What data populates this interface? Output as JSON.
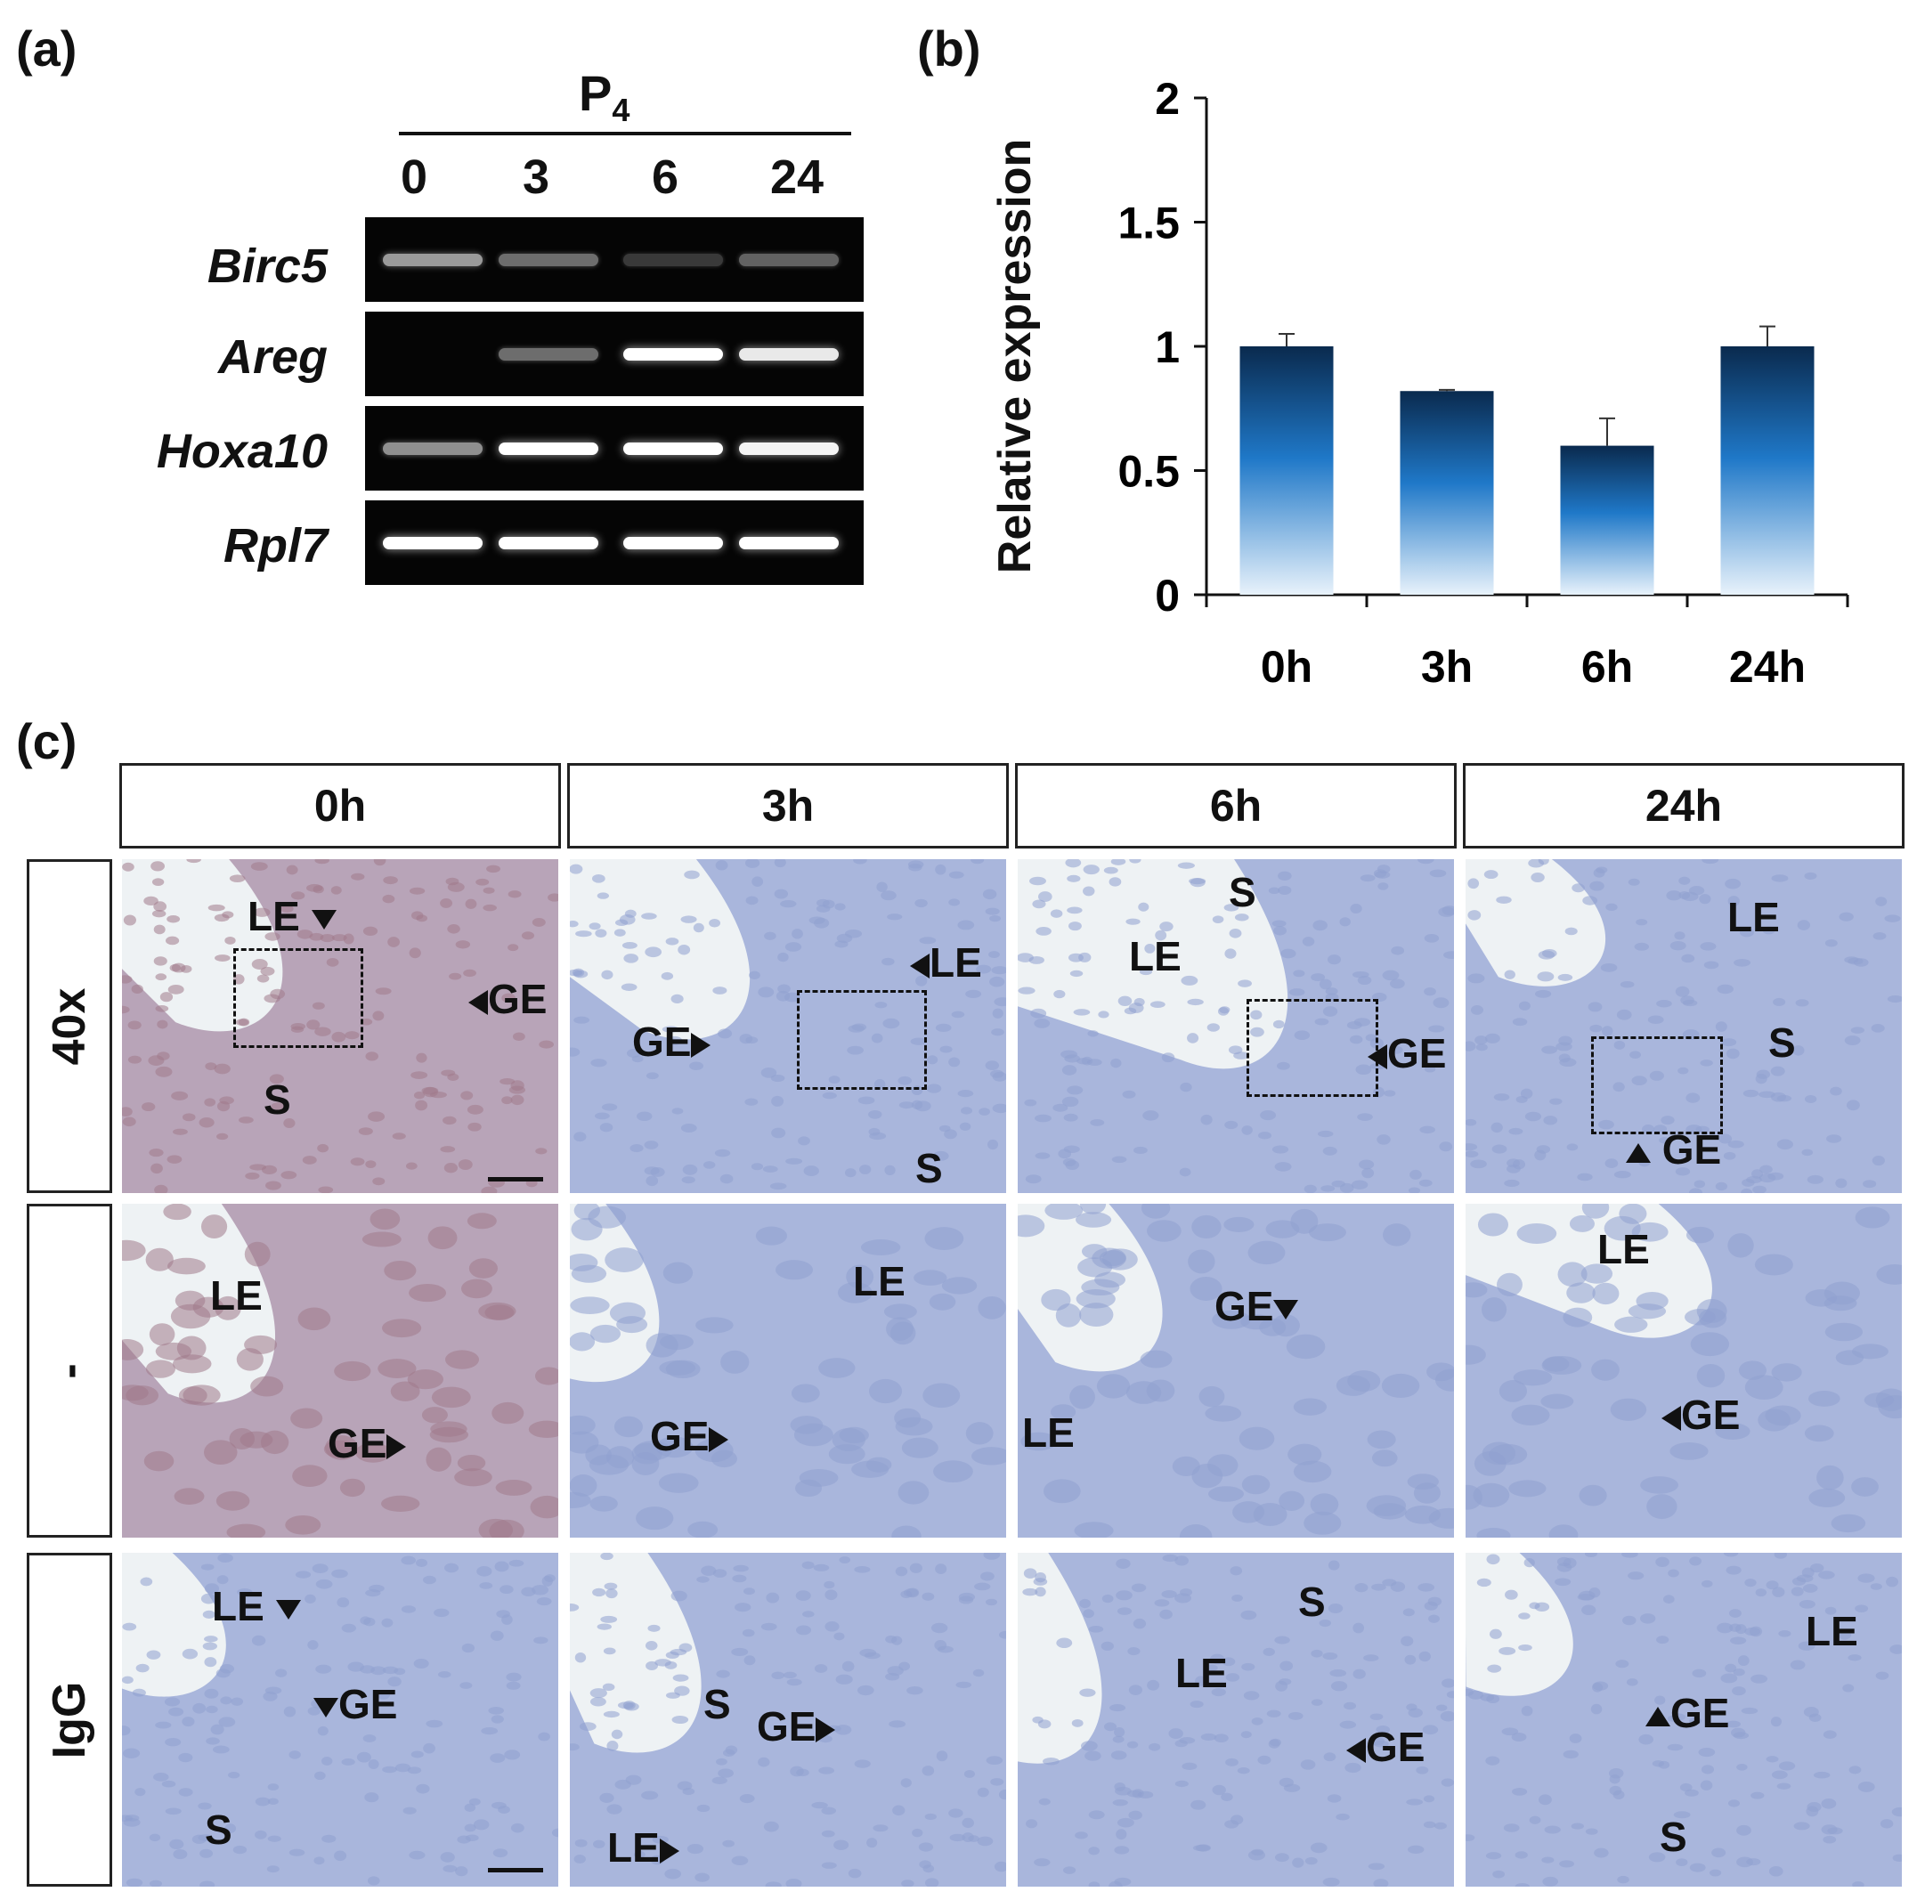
{
  "panel_a": {
    "letter": "(a)",
    "treatment": "P",
    "treatment_sub": "4",
    "lanes": [
      "0",
      "3",
      "6",
      "24"
    ],
    "genes": [
      {
        "name": "Birc5",
        "intensity": [
          0.55,
          0.35,
          0.12,
          0.3
        ]
      },
      {
        "name": "Areg",
        "intensity": [
          0.0,
          0.35,
          1.0,
          0.9
        ]
      },
      {
        "name": "Hoxa10",
        "intensity": [
          0.5,
          1.0,
          1.0,
          0.95
        ]
      },
      {
        "name": "Rpl7",
        "intensity": [
          1.0,
          1.0,
          1.0,
          1.0
        ]
      }
    ]
  },
  "panel_b": {
    "letter": "(b)"
  },
  "chart_data": {
    "type": "bar",
    "categories": [
      "0h",
      "3h",
      "6h",
      "24h"
    ],
    "values": [
      1.0,
      0.82,
      0.6,
      1.0
    ],
    "errors": [
      0.05,
      0.005,
      0.11,
      0.08
    ],
    "ylabel": "Relative expression",
    "ylim": [
      0,
      2
    ],
    "yticks": [
      "0",
      "0.5",
      "1",
      "1.5",
      "2"
    ],
    "bar_color_top": "#0a2a4e",
    "bar_color_mid": "#1f78c8",
    "bar_color_bottom": "#e8f2fb"
  },
  "panel_c": {
    "letter": "(c)",
    "columns": [
      "0h",
      "3h",
      "6h",
      "24h"
    ],
    "rows": [
      "40x",
      "-",
      "IgG"
    ],
    "labels": {
      "r0c0": [
        "LE",
        "GE",
        "S"
      ],
      "r0c1": [
        "LE",
        "GE",
        "S"
      ],
      "r0c2": [
        "S",
        "LE",
        "GE"
      ],
      "r0c3": [
        "LE",
        "S",
        "GE"
      ],
      "r1c0": [
        "LE",
        "GE"
      ],
      "r1c1": [
        "LE",
        "GE"
      ],
      "r1c2": [
        "GE",
        "LE"
      ],
      "r1c3": [
        "LE",
        "GE"
      ],
      "r2c0": [
        "LE",
        "GE",
        "S"
      ],
      "r2c1": [
        "S",
        "GE",
        "LE"
      ],
      "r2c2": [
        "S",
        "LE",
        "GE"
      ],
      "r2c3": [
        "LE",
        "GE",
        "S"
      ]
    },
    "tissue_colors": {
      "brown_stain": "#a07a8a",
      "blue_stain": "#8fa0d0",
      "lumen": "#eef2f4"
    }
  }
}
